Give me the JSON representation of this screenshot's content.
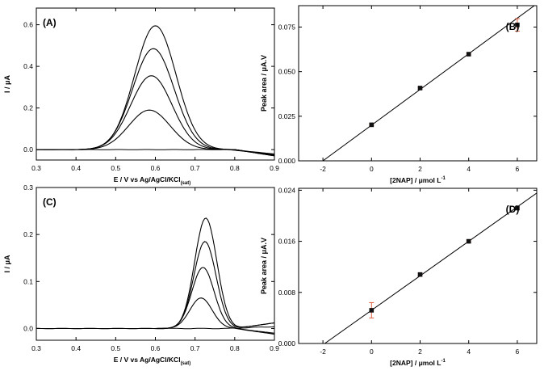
{
  "chart_data": [
    {
      "id": "A",
      "panel_label": "(A)",
      "type": "line",
      "xlabel": "E / V vs Ag/AgCl/KCl",
      "xlabel_sub": "(sat)",
      "ylabel": "I / μA",
      "xlim": [
        0.3,
        0.9
      ],
      "ylim": [
        -0.05,
        0.68
      ],
      "xticks": [
        "0.3",
        "0.4",
        "0.5",
        "0.6",
        "0.7",
        "0.8",
        "0.9"
      ],
      "yticks": [
        "0.0",
        "0.2",
        "0.4",
        "0.6"
      ],
      "series": [
        {
          "peak_x": 0.585,
          "peak_y": 0.19
        },
        {
          "peak_x": 0.59,
          "peak_y": 0.355
        },
        {
          "peak_x": 0.595,
          "peak_y": 0.485
        },
        {
          "peak_x": 0.6,
          "peak_y": 0.595
        }
      ]
    },
    {
      "id": "B",
      "panel_label": "(B)",
      "type": "scatter",
      "xlabel": "[2NAP] / μmol L",
      "xlabel_sup": "-1",
      "ylabel": "Peak area / μA.V",
      "xlim": [
        -3,
        6.8
      ],
      "ylim": [
        0,
        0.087
      ],
      "xticks": [
        "-2",
        "0",
        "2",
        "4",
        "6"
      ],
      "yticks": [
        "0.000",
        "0.025",
        "0.050",
        "0.075"
      ],
      "x": [
        0,
        2,
        4,
        6
      ],
      "y": [
        0.0202,
        0.0408,
        0.0598,
        0.0762
      ],
      "err": [
        0.0006,
        0.0006,
        0.0005,
        0.0035
      ],
      "fit": {
        "slope": 0.01,
        "intercept": 0.02
      }
    },
    {
      "id": "C",
      "panel_label": "(C)",
      "type": "line",
      "xlabel": "E / V vs Ag/AgCl/KCl",
      "xlabel_sub": "(sat)",
      "ylabel": "I / μA",
      "xlim": [
        0.3,
        0.9
      ],
      "ylim": [
        -0.025,
        0.3
      ],
      "xticks": [
        "0.3",
        "0.4",
        "0.5",
        "0.6",
        "0.7",
        "0.8",
        "0.9"
      ],
      "yticks": [
        "0.0",
        "0.1",
        "0.2",
        "0.3"
      ],
      "series": [
        {
          "peak_x": 0.715,
          "peak_y": 0.065
        },
        {
          "peak_x": 0.72,
          "peak_y": 0.13
        },
        {
          "peak_x": 0.725,
          "peak_y": 0.185
        },
        {
          "peak_x": 0.727,
          "peak_y": 0.235
        }
      ]
    },
    {
      "id": "D",
      "panel_label": "(D)",
      "type": "scatter",
      "xlabel": "[2NAP] / μmol L",
      "xlabel_sup": "-1",
      "ylabel": "Peak area / μA.V",
      "xlim": [
        -3,
        6.8
      ],
      "ylim": [
        0,
        0.0243
      ],
      "xticks": [
        "-2",
        "0",
        "2",
        "4",
        "6"
      ],
      "yticks": [
        "0.000",
        "0.008",
        "0.016",
        "0.024"
      ],
      "x": [
        0,
        2,
        4,
        6
      ],
      "y": [
        0.0052,
        0.0108,
        0.016,
        0.0212
      ],
      "err": [
        0.0012,
        0.0002,
        0.0002,
        0.0002
      ],
      "fit": {
        "slope": 0.0027,
        "intercept": 0.0052
      }
    }
  ]
}
